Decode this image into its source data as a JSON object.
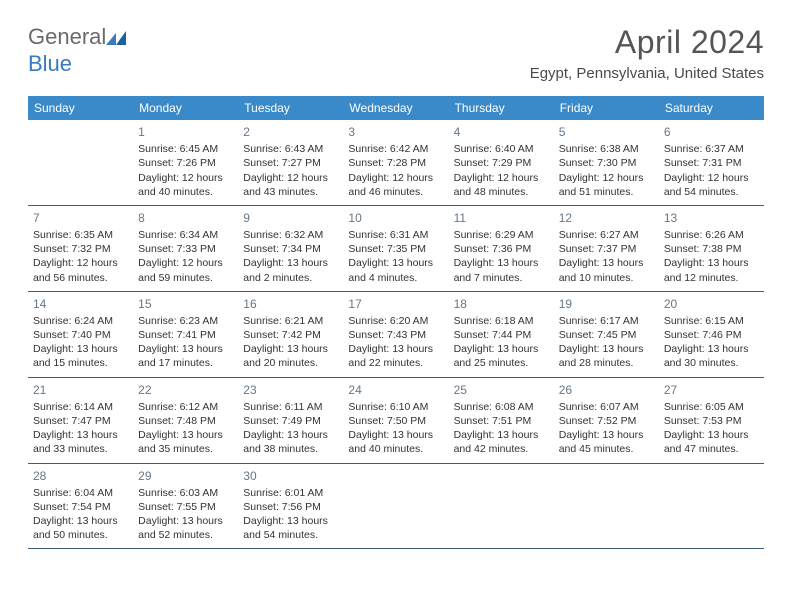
{
  "logo": {
    "word1": "General",
    "word2": "Blue"
  },
  "title": "April 2024",
  "location": "Egypt, Pennsylvania, United States",
  "colors": {
    "header_bg": "#3a8ac9",
    "header_text": "#ffffff",
    "cell_border": "#3a5a7a",
    "logo_blue": "#3a7bbf",
    "daynum": "#667788"
  },
  "days_of_week": [
    "Sunday",
    "Monday",
    "Tuesday",
    "Wednesday",
    "Thursday",
    "Friday",
    "Saturday"
  ],
  "leading_blanks": 1,
  "trailing_blanks": 4,
  "days": [
    {
      "n": 1,
      "sunrise": "6:45 AM",
      "sunset": "7:26 PM",
      "daylight": "12 hours and 40 minutes."
    },
    {
      "n": 2,
      "sunrise": "6:43 AM",
      "sunset": "7:27 PM",
      "daylight": "12 hours and 43 minutes."
    },
    {
      "n": 3,
      "sunrise": "6:42 AM",
      "sunset": "7:28 PM",
      "daylight": "12 hours and 46 minutes."
    },
    {
      "n": 4,
      "sunrise": "6:40 AM",
      "sunset": "7:29 PM",
      "daylight": "12 hours and 48 minutes."
    },
    {
      "n": 5,
      "sunrise": "6:38 AM",
      "sunset": "7:30 PM",
      "daylight": "12 hours and 51 minutes."
    },
    {
      "n": 6,
      "sunrise": "6:37 AM",
      "sunset": "7:31 PM",
      "daylight": "12 hours and 54 minutes."
    },
    {
      "n": 7,
      "sunrise": "6:35 AM",
      "sunset": "7:32 PM",
      "daylight": "12 hours and 56 minutes."
    },
    {
      "n": 8,
      "sunrise": "6:34 AM",
      "sunset": "7:33 PM",
      "daylight": "12 hours and 59 minutes."
    },
    {
      "n": 9,
      "sunrise": "6:32 AM",
      "sunset": "7:34 PM",
      "daylight": "13 hours and 2 minutes."
    },
    {
      "n": 10,
      "sunrise": "6:31 AM",
      "sunset": "7:35 PM",
      "daylight": "13 hours and 4 minutes."
    },
    {
      "n": 11,
      "sunrise": "6:29 AM",
      "sunset": "7:36 PM",
      "daylight": "13 hours and 7 minutes."
    },
    {
      "n": 12,
      "sunrise": "6:27 AM",
      "sunset": "7:37 PM",
      "daylight": "13 hours and 10 minutes."
    },
    {
      "n": 13,
      "sunrise": "6:26 AM",
      "sunset": "7:38 PM",
      "daylight": "13 hours and 12 minutes."
    },
    {
      "n": 14,
      "sunrise": "6:24 AM",
      "sunset": "7:40 PM",
      "daylight": "13 hours and 15 minutes."
    },
    {
      "n": 15,
      "sunrise": "6:23 AM",
      "sunset": "7:41 PM",
      "daylight": "13 hours and 17 minutes."
    },
    {
      "n": 16,
      "sunrise": "6:21 AM",
      "sunset": "7:42 PM",
      "daylight": "13 hours and 20 minutes."
    },
    {
      "n": 17,
      "sunrise": "6:20 AM",
      "sunset": "7:43 PM",
      "daylight": "13 hours and 22 minutes."
    },
    {
      "n": 18,
      "sunrise": "6:18 AM",
      "sunset": "7:44 PM",
      "daylight": "13 hours and 25 minutes."
    },
    {
      "n": 19,
      "sunrise": "6:17 AM",
      "sunset": "7:45 PM",
      "daylight": "13 hours and 28 minutes."
    },
    {
      "n": 20,
      "sunrise": "6:15 AM",
      "sunset": "7:46 PM",
      "daylight": "13 hours and 30 minutes."
    },
    {
      "n": 21,
      "sunrise": "6:14 AM",
      "sunset": "7:47 PM",
      "daylight": "13 hours and 33 minutes."
    },
    {
      "n": 22,
      "sunrise": "6:12 AM",
      "sunset": "7:48 PM",
      "daylight": "13 hours and 35 minutes."
    },
    {
      "n": 23,
      "sunrise": "6:11 AM",
      "sunset": "7:49 PM",
      "daylight": "13 hours and 38 minutes."
    },
    {
      "n": 24,
      "sunrise": "6:10 AM",
      "sunset": "7:50 PM",
      "daylight": "13 hours and 40 minutes."
    },
    {
      "n": 25,
      "sunrise": "6:08 AM",
      "sunset": "7:51 PM",
      "daylight": "13 hours and 42 minutes."
    },
    {
      "n": 26,
      "sunrise": "6:07 AM",
      "sunset": "7:52 PM",
      "daylight": "13 hours and 45 minutes."
    },
    {
      "n": 27,
      "sunrise": "6:05 AM",
      "sunset": "7:53 PM",
      "daylight": "13 hours and 47 minutes."
    },
    {
      "n": 28,
      "sunrise": "6:04 AM",
      "sunset": "7:54 PM",
      "daylight": "13 hours and 50 minutes."
    },
    {
      "n": 29,
      "sunrise": "6:03 AM",
      "sunset": "7:55 PM",
      "daylight": "13 hours and 52 minutes."
    },
    {
      "n": 30,
      "sunrise": "6:01 AM",
      "sunset": "7:56 PM",
      "daylight": "13 hours and 54 minutes."
    }
  ],
  "labels": {
    "sunrise": "Sunrise:",
    "sunset": "Sunset:",
    "daylight": "Daylight:"
  }
}
